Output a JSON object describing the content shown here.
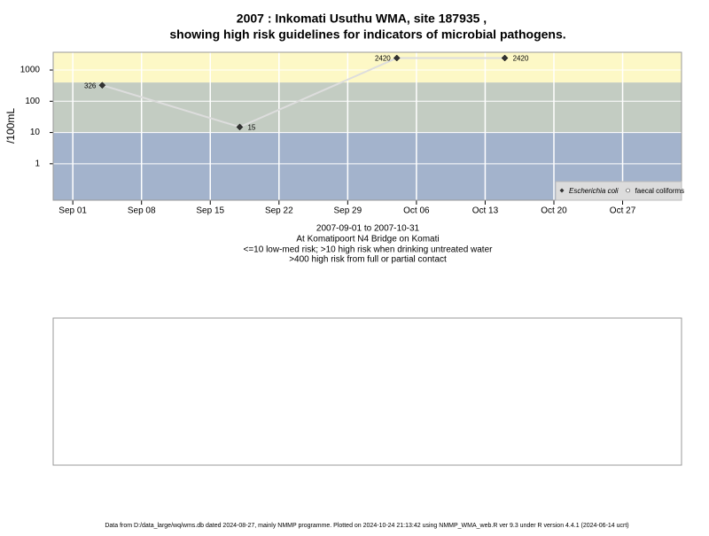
{
  "chart_data": {
    "type": "line",
    "title": [
      "2007 : Inkomati Usuthu WMA, site 187935 ,",
      "showing high risk guidelines for indicators of microbial pathogens."
    ],
    "subtitle": [
      "2007-09-01 to 2007-10-31",
      "At Komatipoort N4 Bridge on Komati",
      "<=10 low-med risk; >10 high risk when drinking untreated water",
      ">400 high risk from full or partial contact"
    ],
    "ylabel": "/100mL",
    "footer": "Data from D:/data_large/wq/wms.db dated 2024-08-27, mainly NMMP programme. Plotted on 2024-10-24 21:13:42 using NMMP_WMA_web.R ver 9.3 under R version 4.4.1 (2024-06-14 ucrt)",
    "log_y": true,
    "grid": true,
    "legend_position": "bottom-right",
    "x": [
      "2007-09-04",
      "2007-09-18",
      "2007-10-04",
      "2007-10-15"
    ],
    "series": [
      {
        "name": "Escherichia coli",
        "color": "#333333",
        "line_color": "#dddddd",
        "values": [
          326,
          15,
          2420,
          2420
        ]
      },
      {
        "name": "faecal coliforms",
        "color": "#ffffff",
        "values": [
          null,
          null,
          null,
          null
        ]
      }
    ],
    "thresholds": [
      10,
      400
    ],
    "band_colors": [
      "#a3b3cc",
      "#c3ccc2",
      "#fdf8c6"
    ],
    "xlim": [
      "2007-08-30",
      "2007-11-02"
    ],
    "xticks": [
      {
        "value": "2007-09-01",
        "label": "Sep 01"
      },
      {
        "value": "2007-09-08",
        "label": "Sep 08"
      },
      {
        "value": "2007-09-15",
        "label": "Sep 15"
      },
      {
        "value": "2007-09-22",
        "label": "Sep 22"
      },
      {
        "value": "2007-09-29",
        "label": "Sep 29"
      },
      {
        "value": "2007-10-06",
        "label": "Oct 06"
      },
      {
        "value": "2007-10-13",
        "label": "Oct 13"
      },
      {
        "value": "2007-10-20",
        "label": "Oct 20"
      },
      {
        "value": "2007-10-27",
        "label": "Oct 27"
      }
    ],
    "ylim": [
      0.068,
      3700
    ],
    "yticks": [
      1,
      10,
      100,
      1000
    ]
  }
}
